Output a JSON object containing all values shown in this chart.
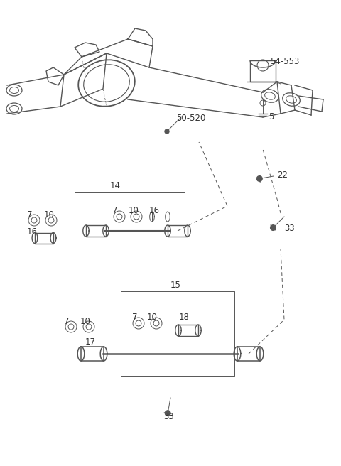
{
  "bg_color": "#ffffff",
  "line_color": "#555555",
  "label_color": "#333333",
  "fig_width": 4.8,
  "fig_height": 6.56,
  "dpi": 100,
  "axle_color": "#666666",
  "lw_main": 1.0,
  "lw_thin": 0.7,
  "label_fs": 8.5
}
